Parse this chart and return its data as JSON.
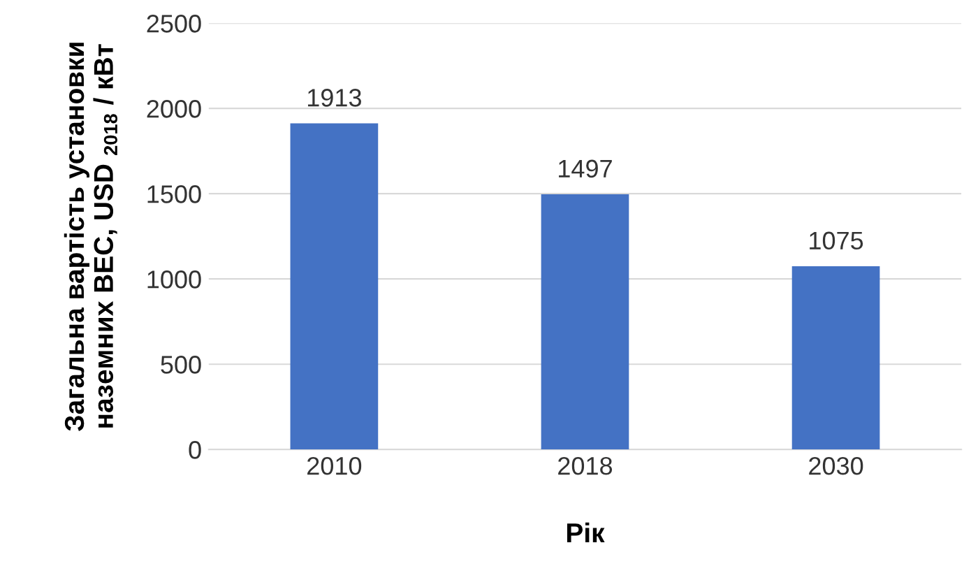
{
  "chart_data": {
    "type": "bar",
    "categories": [
      "2010",
      "2018",
      "2030"
    ],
    "values": [
      1913,
      1497,
      1075
    ],
    "color": "#4472c4",
    "data_labels": true,
    "xlabel": "Рік",
    "ylabel": "Загальна вартість установки\nназемних ВЕС, USD $_{2018}$ / кВт",
    "ylim": [
      0,
      2500
    ],
    "yticks": [
      0,
      500,
      1000,
      1500,
      2000,
      2500
    ],
    "grid": "y",
    "legend": false
  }
}
